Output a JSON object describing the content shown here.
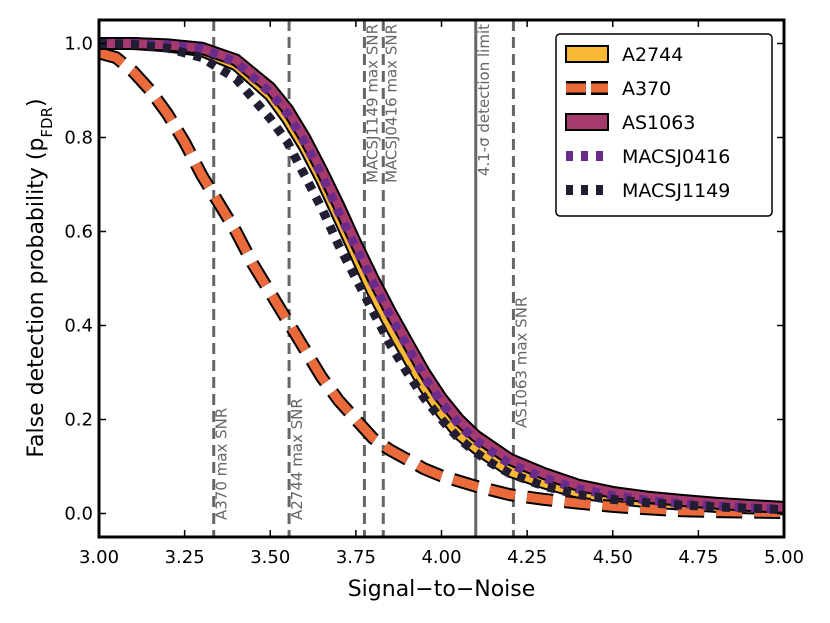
{
  "chart_data": {
    "type": "line",
    "xlabel": "Signal−to−Noise",
    "ylabel_main": "False detection probability (p",
    "ylabel_sub": "FDR",
    "ylabel_close": ")",
    "xlim": [
      3.0,
      5.0
    ],
    "ylim": [
      -0.05,
      1.05
    ],
    "xticks": [
      {
        "v": 3.0,
        "label": "3.00"
      },
      {
        "v": 3.25,
        "label": "3.25"
      },
      {
        "v": 3.5,
        "label": "3.50"
      },
      {
        "v": 3.75,
        "label": "3.75"
      },
      {
        "v": 4.0,
        "label": "4.00"
      },
      {
        "v": 4.25,
        "label": "4.25"
      },
      {
        "v": 4.5,
        "label": "4.50"
      },
      {
        "v": 4.75,
        "label": "4.75"
      },
      {
        "v": 5.0,
        "label": "5.00"
      }
    ],
    "yticks": [
      {
        "v": 0.0,
        "label": "0.0"
      },
      {
        "v": 0.2,
        "label": "0.2"
      },
      {
        "v": 0.4,
        "label": "0.4"
      },
      {
        "v": 0.6,
        "label": "0.6"
      },
      {
        "v": 0.8,
        "label": "0.8"
      },
      {
        "v": 1.0,
        "label": "1.0"
      }
    ],
    "series": [
      {
        "name": "A2744",
        "color": "#f9b834",
        "style": "solid",
        "x": [
          3.0,
          3.1,
          3.2,
          3.3,
          3.4,
          3.5,
          3.55,
          3.6,
          3.65,
          3.7,
          3.75,
          3.8,
          3.85,
          3.9,
          3.95,
          4.0,
          4.05,
          4.1,
          4.15,
          4.2,
          4.3,
          4.4,
          4.5,
          4.6,
          4.7,
          4.8,
          4.9,
          5.0
        ],
        "y": [
          1.0,
          1.0,
          0.995,
          0.985,
          0.955,
          0.89,
          0.84,
          0.78,
          0.71,
          0.63,
          0.55,
          0.47,
          0.4,
          0.335,
          0.27,
          0.215,
          0.17,
          0.14,
          0.115,
          0.09,
          0.065,
          0.045,
          0.033,
          0.025,
          0.02,
          0.015,
          0.012,
          0.01
        ]
      },
      {
        "name": "A370",
        "color": "#ea6a3b",
        "style": "dashed",
        "x": [
          3.0,
          3.05,
          3.1,
          3.15,
          3.2,
          3.25,
          3.3,
          3.35,
          3.4,
          3.45,
          3.5,
          3.55,
          3.6,
          3.65,
          3.7,
          3.75,
          3.8,
          3.85,
          3.9,
          3.95,
          4.0,
          4.1,
          4.2,
          4.3,
          4.4,
          4.5,
          4.6,
          4.7,
          4.8,
          4.9,
          5.0
        ],
        "y": [
          0.98,
          0.97,
          0.94,
          0.9,
          0.85,
          0.79,
          0.72,
          0.66,
          0.6,
          0.53,
          0.47,
          0.41,
          0.35,
          0.29,
          0.24,
          0.2,
          0.16,
          0.135,
          0.115,
          0.095,
          0.08,
          0.058,
          0.04,
          0.03,
          0.022,
          0.015,
          0.01,
          0.006,
          0.004,
          0.003,
          0.002
        ]
      },
      {
        "name": "AS1063",
        "color": "#a6396d",
        "style": "solid",
        "x": [
          3.0,
          3.1,
          3.2,
          3.3,
          3.4,
          3.5,
          3.55,
          3.6,
          3.65,
          3.7,
          3.75,
          3.8,
          3.85,
          3.9,
          3.95,
          4.0,
          4.05,
          4.1,
          4.15,
          4.2,
          4.3,
          4.4,
          4.5,
          4.6,
          4.7,
          4.8,
          4.9,
          5.0
        ],
        "y": [
          1.0,
          1.0,
          0.997,
          0.99,
          0.965,
          0.905,
          0.86,
          0.8,
          0.73,
          0.655,
          0.575,
          0.5,
          0.43,
          0.365,
          0.3,
          0.245,
          0.2,
          0.165,
          0.14,
          0.115,
          0.085,
          0.06,
          0.045,
          0.035,
          0.028,
          0.022,
          0.017,
          0.013
        ]
      },
      {
        "name": "MACSJ0416",
        "color": "#6a2c8a",
        "style": "dotted",
        "x": [
          3.0,
          3.1,
          3.2,
          3.3,
          3.4,
          3.5,
          3.55,
          3.6,
          3.65,
          3.7,
          3.75,
          3.8,
          3.85,
          3.9,
          3.95,
          4.0,
          4.05,
          4.1,
          4.15,
          4.2,
          4.3,
          4.4,
          4.5,
          4.6,
          4.7,
          4.8,
          4.9,
          5.0
        ],
        "y": [
          1.0,
          1.0,
          0.997,
          0.99,
          0.96,
          0.895,
          0.85,
          0.79,
          0.72,
          0.64,
          0.565,
          0.49,
          0.42,
          0.355,
          0.29,
          0.235,
          0.19,
          0.155,
          0.13,
          0.105,
          0.075,
          0.052,
          0.038,
          0.028,
          0.021,
          0.016,
          0.012,
          0.009
        ]
      },
      {
        "name": "MACSJ1149",
        "color": "#231d34",
        "style": "dotted",
        "x": [
          3.0,
          3.1,
          3.2,
          3.3,
          3.4,
          3.5,
          3.55,
          3.6,
          3.65,
          3.7,
          3.75,
          3.8,
          3.85,
          3.9,
          3.95,
          4.0,
          4.05,
          4.1,
          4.15,
          4.2,
          4.3,
          4.4,
          4.5,
          4.6,
          4.7,
          4.8,
          4.9,
          5.0
        ],
        "y": [
          1.0,
          0.998,
          0.99,
          0.97,
          0.925,
          0.84,
          0.79,
          0.72,
          0.65,
          0.57,
          0.5,
          0.43,
          0.36,
          0.3,
          0.245,
          0.2,
          0.16,
          0.13,
          0.105,
          0.085,
          0.058,
          0.04,
          0.03,
          0.023,
          0.018,
          0.014,
          0.011,
          0.008
        ]
      }
    ],
    "vlines": [
      {
        "x": 3.335,
        "label": "A370 max SNR",
        "style": "dashed",
        "label_pos": "bottom"
      },
      {
        "x": 3.555,
        "label": "A2744 max SNR",
        "style": "dashed",
        "label_pos": "bottom"
      },
      {
        "x": 3.775,
        "label": "MACSJ1149 max SNR",
        "style": "dashed",
        "label_pos": "top"
      },
      {
        "x": 3.83,
        "label": "MACSJ0416 max SNR",
        "style": "dashed",
        "label_pos": "top"
      },
      {
        "x": 4.1,
        "label": "4.1-σ detection limit",
        "style": "solid",
        "label_pos": "top"
      },
      {
        "x": 4.21,
        "label": "AS1063 max SNR",
        "style": "dashed",
        "label_pos": "mid"
      }
    ],
    "vline_color": "#666666",
    "legend_position": "top-right"
  }
}
